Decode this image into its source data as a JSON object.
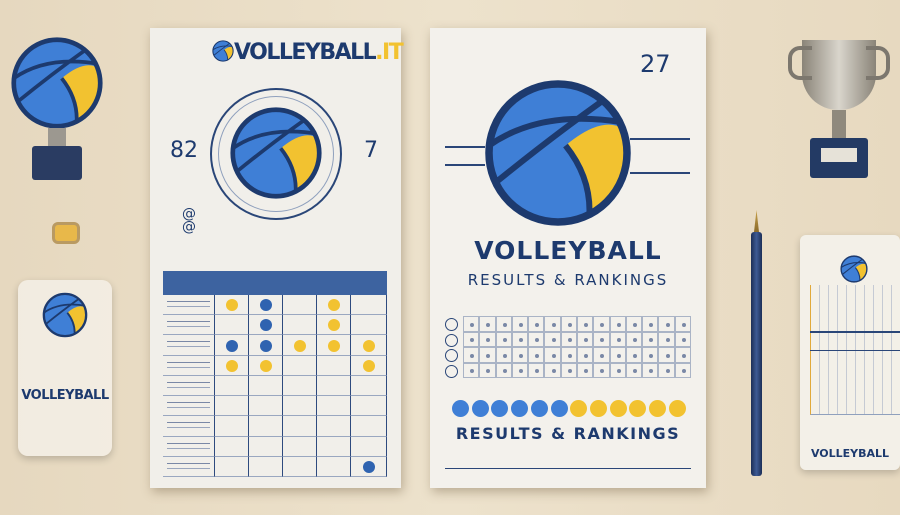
{
  "colors": {
    "navy": "#1d3a6e",
    "blue": "#3f7fd6",
    "yellow": "#f2c230",
    "background": "#ebdfc7"
  },
  "left_trophy": {
    "icon": "volleyball-trophy-icon"
  },
  "left_plaque": {
    "title": "VOLLEYBALL"
  },
  "left_doc": {
    "logo_main": "VOLLEYBALL",
    "logo_suffix": ".IT",
    "score_left": "82",
    "score_right": "7",
    "table": {
      "columns": 6,
      "rows": 9
    }
  },
  "right_doc": {
    "number": "27",
    "title": "VOLLEYBALL",
    "subtitle": "RESULTS & RANKINGS",
    "footer": "RESULTS & RANKINGS",
    "grid": {
      "rows": 4,
      "columns": 14
    },
    "dots": [
      "blue",
      "blue",
      "blue",
      "blue",
      "blue",
      "blue",
      "yellow",
      "yellow",
      "yellow",
      "yellow",
      "yellow",
      "yellow"
    ]
  },
  "right_trophy": {
    "icon": "trophy-icon"
  },
  "pen": {
    "icon": "pen-icon"
  },
  "right_card": {
    "title": "VOLLEYBALL"
  }
}
